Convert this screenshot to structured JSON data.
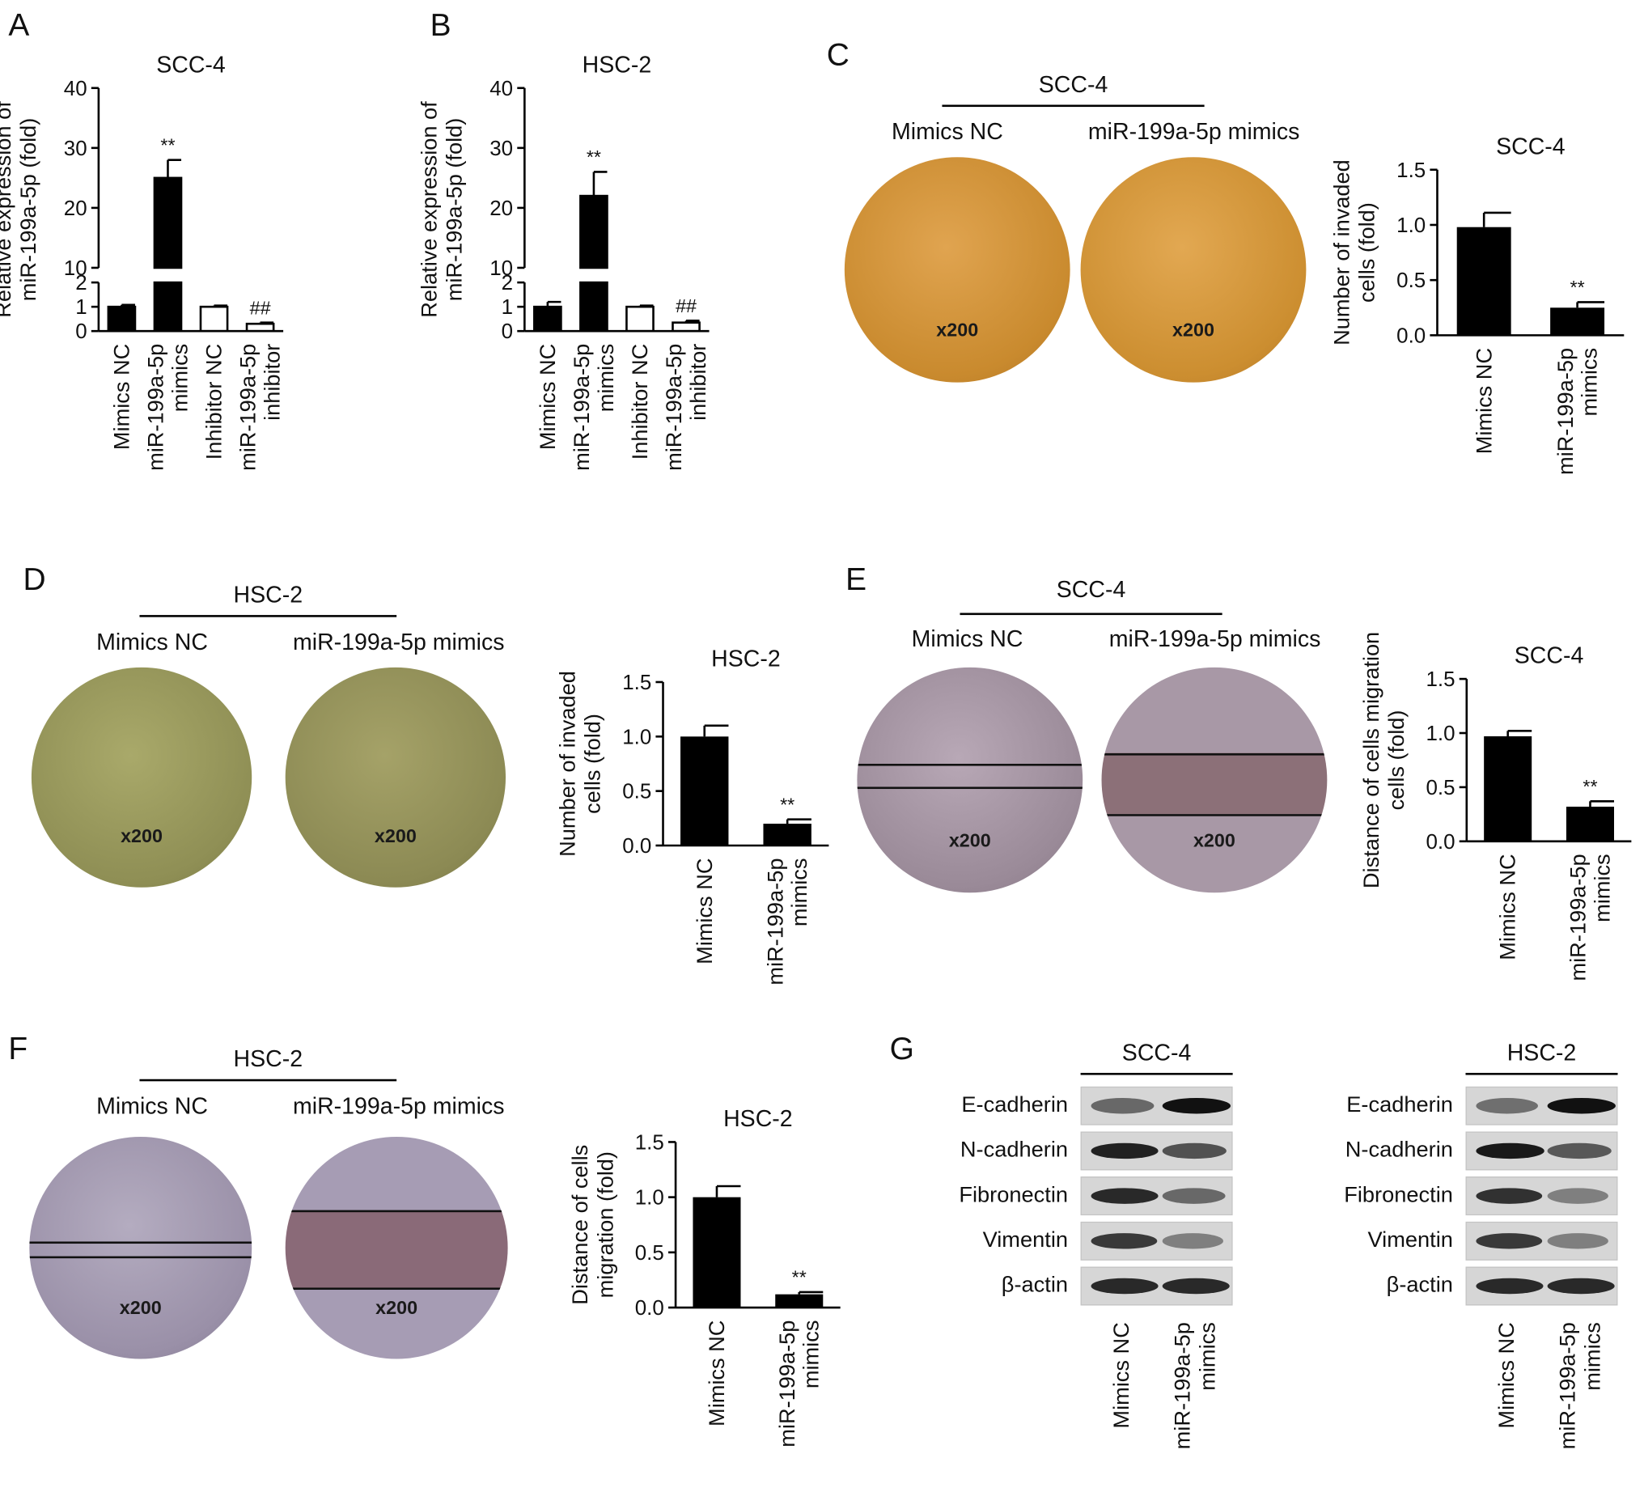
{
  "panel_letters": {
    "A": "A",
    "B": "B",
    "C": "C",
    "D": "D",
    "E": "E",
    "F": "F",
    "G": "G"
  },
  "colors": {
    "bar_filled": "#000000",
    "bar_open": "#ffffff",
    "invasion_C": "#c98a2e",
    "invasion_D": "#8f8f55",
    "wound": "#8c7a8a",
    "blot_band": "#111111",
    "blot_bg": "#d6d6d6"
  },
  "images": {
    "C": {
      "title": "SCC-4",
      "left_label": "Mimics NC",
      "right_label": "miR-199a-5p mimics",
      "left_mag": "x200",
      "right_mag": "x200"
    },
    "D": {
      "title": "HSC-2",
      "left_label": "Mimics NC",
      "right_label": "miR-199a-5p mimics",
      "left_mag": "x200",
      "right_mag": "x200"
    },
    "E": {
      "title": "SCC-4",
      "left_label": "Mimics NC",
      "right_label": "miR-199a-5p mimics",
      "left_mag": "x200",
      "right_mag": "x200"
    },
    "F": {
      "title": "HSC-2",
      "left_label": "Mimics NC",
      "right_label": "miR-199a-5p mimics",
      "left_mag": "x200",
      "right_mag": "x200"
    }
  },
  "western": {
    "proteins": [
      "E-cadherin",
      "N-cadherin",
      "Fibronectin",
      "Vimentin",
      "β-actin"
    ],
    "lanes": [
      "Mimics NC",
      "miR-199a-5p mimics"
    ],
    "blots": [
      {
        "title": "SCC-4",
        "intensity": [
          [
            0.45,
            1.0
          ],
          [
            0.9,
            0.6
          ],
          [
            0.85,
            0.45
          ],
          [
            0.75,
            0.3
          ],
          [
            0.85,
            0.85
          ]
        ]
      },
      {
        "title": "HSC-2",
        "intensity": [
          [
            0.4,
            1.0
          ],
          [
            0.95,
            0.55
          ],
          [
            0.8,
            0.3
          ],
          [
            0.75,
            0.3
          ],
          [
            0.85,
            0.85
          ]
        ]
      }
    ]
  },
  "chart_data": [
    {
      "id": "A",
      "type": "bar",
      "title": "SCC-4",
      "ylabel": [
        "Relative expression of",
        "miR-199a-5p (fold)"
      ],
      "categories": [
        [
          "Mimics NC"
        ],
        [
          "miR-199a-5p",
          "mimics"
        ],
        [
          "Inhibitor NC"
        ],
        [
          "miR-199a-5p",
          "inhibitor"
        ]
      ],
      "values": [
        1.0,
        25.0,
        1.0,
        0.3
      ],
      "errors": [
        0.08,
        3.0,
        0.05,
        0.05
      ],
      "fill": [
        "#000000",
        "#000000",
        "#ffffff",
        "#ffffff"
      ],
      "annotations": [
        "",
        "**",
        "",
        "##"
      ],
      "axis_break": {
        "lower": [
          0,
          2
        ],
        "upper": [
          10,
          40
        ]
      },
      "yticks_lower": [
        "0",
        "1",
        "2"
      ],
      "yticks_upper": [
        "10",
        "20",
        "30",
        "40"
      ]
    },
    {
      "id": "B",
      "type": "bar",
      "title": "HSC-2",
      "ylabel": [
        "Relative expression of",
        "miR-199a-5p (fold)"
      ],
      "categories": [
        [
          "Mimics NC"
        ],
        [
          "miR-199a-5p",
          "mimics"
        ],
        [
          "Inhibitor NC"
        ],
        [
          "miR-199a-5p",
          "inhibitor"
        ]
      ],
      "values": [
        1.0,
        22.0,
        1.0,
        0.35
      ],
      "errors": [
        0.2,
        4.0,
        0.05,
        0.08
      ],
      "fill": [
        "#000000",
        "#000000",
        "#ffffff",
        "#ffffff"
      ],
      "annotations": [
        "",
        "**",
        "",
        "##"
      ],
      "axis_break": {
        "lower": [
          0,
          2
        ],
        "upper": [
          10,
          40
        ]
      },
      "yticks_lower": [
        "0",
        "1",
        "2"
      ],
      "yticks_upper": [
        "10",
        "20",
        "30",
        "40"
      ]
    },
    {
      "id": "C",
      "type": "bar",
      "title": "SCC-4",
      "ylabel": [
        "Number of invaded",
        "cells (fold)"
      ],
      "categories": [
        [
          "Mimics NC"
        ],
        [
          "miR-199a-5p",
          "mimics"
        ]
      ],
      "values": [
        0.98,
        0.25
      ],
      "errors": [
        0.13,
        0.05
      ],
      "annotations": [
        "",
        "**"
      ],
      "ylim": [
        0,
        1.5
      ],
      "yticks": [
        "0.0",
        "0.5",
        "1.0",
        "1.5"
      ]
    },
    {
      "id": "D",
      "type": "bar",
      "title": "HSC-2",
      "ylabel": [
        "Number of invaded",
        "cells (fold)"
      ],
      "categories": [
        [
          "Mimics NC"
        ],
        [
          "miR-199a-5p",
          "mimics"
        ]
      ],
      "values": [
        1.0,
        0.2
      ],
      "errors": [
        0.1,
        0.04
      ],
      "annotations": [
        "",
        "**"
      ],
      "ylim": [
        0,
        1.5
      ],
      "yticks": [
        "0.0",
        "0.5",
        "1.0",
        "1.5"
      ]
    },
    {
      "id": "E",
      "type": "bar",
      "title": "SCC-4",
      "ylabel": [
        "Distance of cells migration",
        "cells (fold)"
      ],
      "categories": [
        [
          "Mimics NC"
        ],
        [
          "miR-199a-5p",
          "mimics"
        ]
      ],
      "values": [
        0.97,
        0.32
      ],
      "errors": [
        0.05,
        0.05
      ],
      "annotations": [
        "",
        "**"
      ],
      "ylim": [
        0,
        1.5
      ],
      "yticks": [
        "0.0",
        "0.5",
        "1.0",
        "1.5"
      ]
    },
    {
      "id": "F",
      "type": "bar",
      "title": "HSC-2",
      "ylabel": [
        "Distance of cells",
        "migration (fold)"
      ],
      "categories": [
        [
          "Mimics NC"
        ],
        [
          "miR-199a-5p",
          "mimics"
        ]
      ],
      "values": [
        1.0,
        0.12
      ],
      "errors": [
        0.1,
        0.02
      ],
      "annotations": [
        "",
        "**"
      ],
      "ylim": [
        0,
        1.5
      ],
      "yticks": [
        "0.0",
        "0.5",
        "1.0",
        "1.5"
      ]
    }
  ]
}
